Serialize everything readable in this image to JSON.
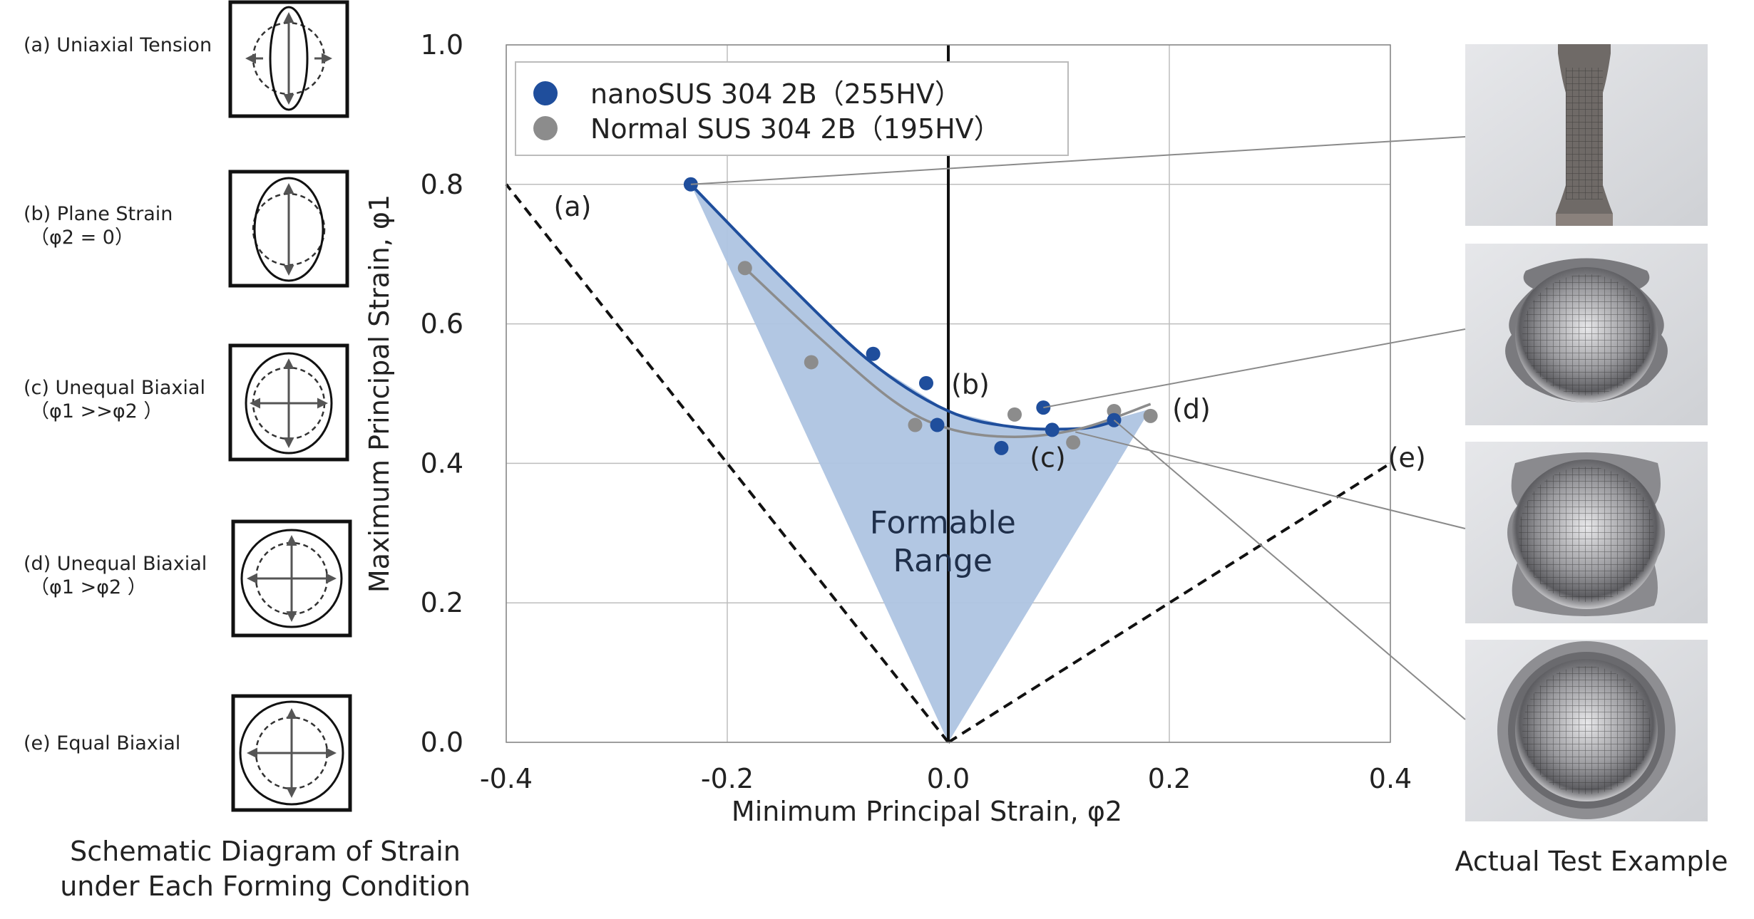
{
  "chart_data": {
    "type": "scatter",
    "xlabel": "Minimum Principal Strain, φ2",
    "ylabel": "Maximum Principal Strain, φ1",
    "xlim": [
      -0.4,
      0.4
    ],
    "ylim": [
      0.0,
      1.0
    ],
    "xticks": [
      "-0.4",
      "-0.2",
      "0.0",
      "0.2",
      "0.4"
    ],
    "yticks": [
      "0.0",
      "0.2",
      "0.4",
      "0.6",
      "0.8",
      "1.0"
    ],
    "grid": true,
    "legend_position": "top-left",
    "series": [
      {
        "name": "nanoSUS  304 2B（255HV）",
        "color": "#1f4e9c",
        "points": [
          [
            -0.233,
            0.8
          ],
          [
            -0.068,
            0.557
          ],
          [
            -0.02,
            0.515
          ],
          [
            -0.01,
            0.455
          ],
          [
            0.048,
            0.422
          ],
          [
            0.086,
            0.48
          ],
          [
            0.094,
            0.448
          ],
          [
            0.15,
            0.462
          ]
        ],
        "fit_curve": [
          [
            -0.233,
            0.8
          ],
          [
            -0.15,
            0.665
          ],
          [
            -0.07,
            0.545
          ],
          [
            0.0,
            0.475
          ],
          [
            0.06,
            0.452
          ],
          [
            0.12,
            0.45
          ],
          [
            0.15,
            0.46
          ]
        ]
      },
      {
        "name": "Normal SUS  304 2B（195HV）",
        "color": "#8c8c8c",
        "points": [
          [
            -0.184,
            0.68
          ],
          [
            -0.124,
            0.545
          ],
          [
            -0.03,
            0.455
          ],
          [
            0.06,
            0.47
          ],
          [
            0.113,
            0.43
          ],
          [
            0.15,
            0.475
          ],
          [
            0.183,
            0.468
          ]
        ],
        "fit_curve": [
          [
            -0.184,
            0.68
          ],
          [
            -0.12,
            0.585
          ],
          [
            -0.05,
            0.49
          ],
          [
            0.0,
            0.45
          ],
          [
            0.06,
            0.438
          ],
          [
            0.12,
            0.45
          ],
          [
            0.183,
            0.485
          ]
        ]
      }
    ],
    "formable_region": [
      [
        -0.233,
        0.8
      ],
      [
        -0.15,
        0.665
      ],
      [
        -0.07,
        0.545
      ],
      [
        0.0,
        0.475
      ],
      [
        0.06,
        0.452
      ],
      [
        0.12,
        0.45
      ],
      [
        0.183,
        0.478
      ],
      [
        0.0,
        0.0
      ]
    ],
    "reference_lines": [
      {
        "label": "(a)",
        "from": [
          0.0,
          0.0
        ],
        "to": [
          -0.4,
          0.8
        ]
      },
      {
        "label": "(e)",
        "from": [
          0.0,
          0.0
        ],
        "to": [
          0.4,
          0.4
        ]
      }
    ],
    "annotations": [
      {
        "text": "(a)",
        "x": -0.34,
        "y": 0.755
      },
      {
        "text": "(b)",
        "x": 0.02,
        "y": 0.5
      },
      {
        "text": "(c)",
        "x": 0.09,
        "y": 0.395
      },
      {
        "text": "(d)",
        "x": 0.22,
        "y": 0.465
      },
      {
        "text": "(e)",
        "x": 0.415,
        "y": 0.395
      },
      {
        "text": "Formable\nRange",
        "x": -0.005,
        "y": 0.27
      }
    ]
  },
  "region_label": [
    "Formable",
    "Range"
  ],
  "schematic": {
    "caption": [
      "Schematic Diagram of Strain",
      "under Each Forming Condition"
    ],
    "items": [
      {
        "label": [
          "(a) Uniaxial Tension"
        ],
        "icon": "uniaxial-tension-icon"
      },
      {
        "label": [
          "(b) Plane Strain",
          "（φ2 = 0）"
        ],
        "icon": "plane-strain-icon"
      },
      {
        "label": [
          "(c) Unequal Biaxial",
          "（φ1 >>φ2 ）"
        ],
        "icon": "unequal-biaxial-strong-icon"
      },
      {
        "label": [
          "(d) Unequal Biaxial",
          "（φ1 >φ2 ）"
        ],
        "icon": "unequal-biaxial-icon"
      },
      {
        "label": [
          "(e) Equal Biaxial"
        ],
        "icon": "equal-biaxial-icon"
      }
    ]
  },
  "photos": {
    "caption": "Actual Test Example",
    "items": [
      "tensile-specimen-photo",
      "formed-cup-plane-strain-photo",
      "formed-cup-unequal-biaxial-photo",
      "formed-cup-equal-biaxial-photo"
    ]
  },
  "colors": {
    "nano": "#1f4e9c",
    "normal": "#8c8c8c",
    "region": "#aec4e2",
    "grid": "#bdbdbd"
  }
}
